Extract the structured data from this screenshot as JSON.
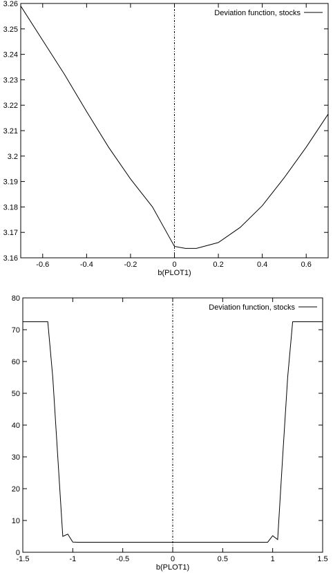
{
  "chart_data": [
    {
      "type": "line",
      "title": "",
      "xlabel": "b(PLOT1)",
      "ylabel": "",
      "xlim": [
        -0.7,
        0.7
      ],
      "ylim": [
        3.16,
        3.26
      ],
      "xticks": [
        -0.6,
        -0.4,
        -0.2,
        0,
        0.2,
        0.4,
        0.6
      ],
      "xtick_labels": [
        "-0.6",
        "-0.4",
        "-0.2",
        "0",
        "0.2",
        "0.4",
        "0.6"
      ],
      "yticks": [
        3.16,
        3.17,
        3.18,
        3.19,
        3.2,
        3.21,
        3.22,
        3.23,
        3.24,
        3.25,
        3.26
      ],
      "ytick_labels": [
        "3.16",
        "3.17",
        "3.18",
        "3.19",
        "3.2",
        "3.21",
        "3.22",
        "3.23",
        "3.24",
        "3.25",
        "3.26"
      ],
      "grid": false,
      "legend_position": "top-right",
      "vertical_reference_x": 0,
      "series": [
        {
          "name": "Deviation function, stocks",
          "x": [
            -0.7,
            -0.6,
            -0.5,
            -0.4,
            -0.3,
            -0.2,
            -0.1,
            0,
            0.05,
            0.1,
            0.2,
            0.3,
            0.4,
            0.5,
            0.6,
            0.7
          ],
          "y": [
            3.259,
            3.2455,
            3.232,
            3.2175,
            3.2035,
            3.191,
            3.18,
            3.1645,
            3.1637,
            3.1637,
            3.166,
            3.172,
            3.1805,
            3.1915,
            3.2035,
            3.2165
          ]
        }
      ]
    },
    {
      "type": "line",
      "title": "",
      "xlabel": "b(PLOT1)",
      "ylabel": "",
      "xlim": [
        -1.5,
        1.5
      ],
      "ylim": [
        0,
        80
      ],
      "xticks": [
        -1.5,
        -1,
        -0.5,
        0,
        0.5,
        1,
        1.5
      ],
      "xtick_labels": [
        "-1.5",
        "-1",
        "-0.5",
        "0",
        "0.5",
        "1",
        "1.5"
      ],
      "yticks": [
        0,
        10,
        20,
        30,
        40,
        50,
        60,
        70,
        80
      ],
      "ytick_labels": [
        "0",
        "10",
        "20",
        "30",
        "40",
        "50",
        "60",
        "70",
        "80"
      ],
      "grid": false,
      "legend_position": "top-right",
      "vertical_reference_x": 0,
      "series": [
        {
          "name": "Deviation function, stocks",
          "x": [
            -1.5,
            -1.25,
            -1.2,
            -1.15,
            -1.1,
            -1.05,
            -1.0,
            -0.95,
            0.95,
            1.0,
            1.05,
            1.1,
            1.15,
            1.2,
            1.25,
            1.5
          ],
          "y": [
            72.5,
            72.5,
            55,
            30,
            5,
            5.7,
            3.2,
            3.16,
            3.16,
            5.2,
            4.0,
            30,
            55,
            72.5,
            72.5,
            72.5
          ]
        }
      ]
    }
  ]
}
